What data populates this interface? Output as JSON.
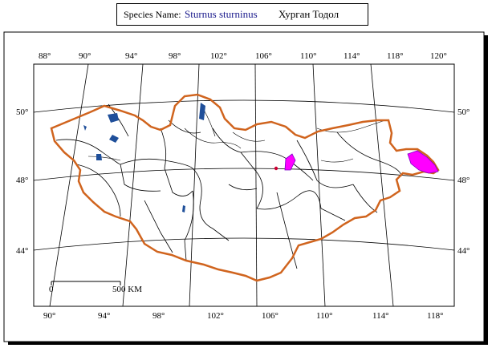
{
  "header": {
    "label": "Species Name:",
    "scientific_name": "Sturnus sturninus",
    "local_name": "Хурган Тодол"
  },
  "map": {
    "top_lon_labels": [
      "88°",
      "90°",
      "94°",
      "98°",
      "102°",
      "106°",
      "110°",
      "114°",
      "118°",
      "120°"
    ],
    "bottom_lon_labels": [
      "90°",
      "94°",
      "98°",
      "102°",
      "106°",
      "110°",
      "114°",
      "118°"
    ],
    "left_lat_labels": [
      "50°",
      "48°",
      "44°"
    ],
    "right_lat_labels": [
      "50°",
      "48°",
      "44°"
    ],
    "scale_start": "0",
    "scale_end": "500 KM",
    "colors": {
      "border": "#d0641e",
      "water": "#1f4f9a",
      "range": "#ff00ff",
      "grid": "#000000"
    }
  }
}
